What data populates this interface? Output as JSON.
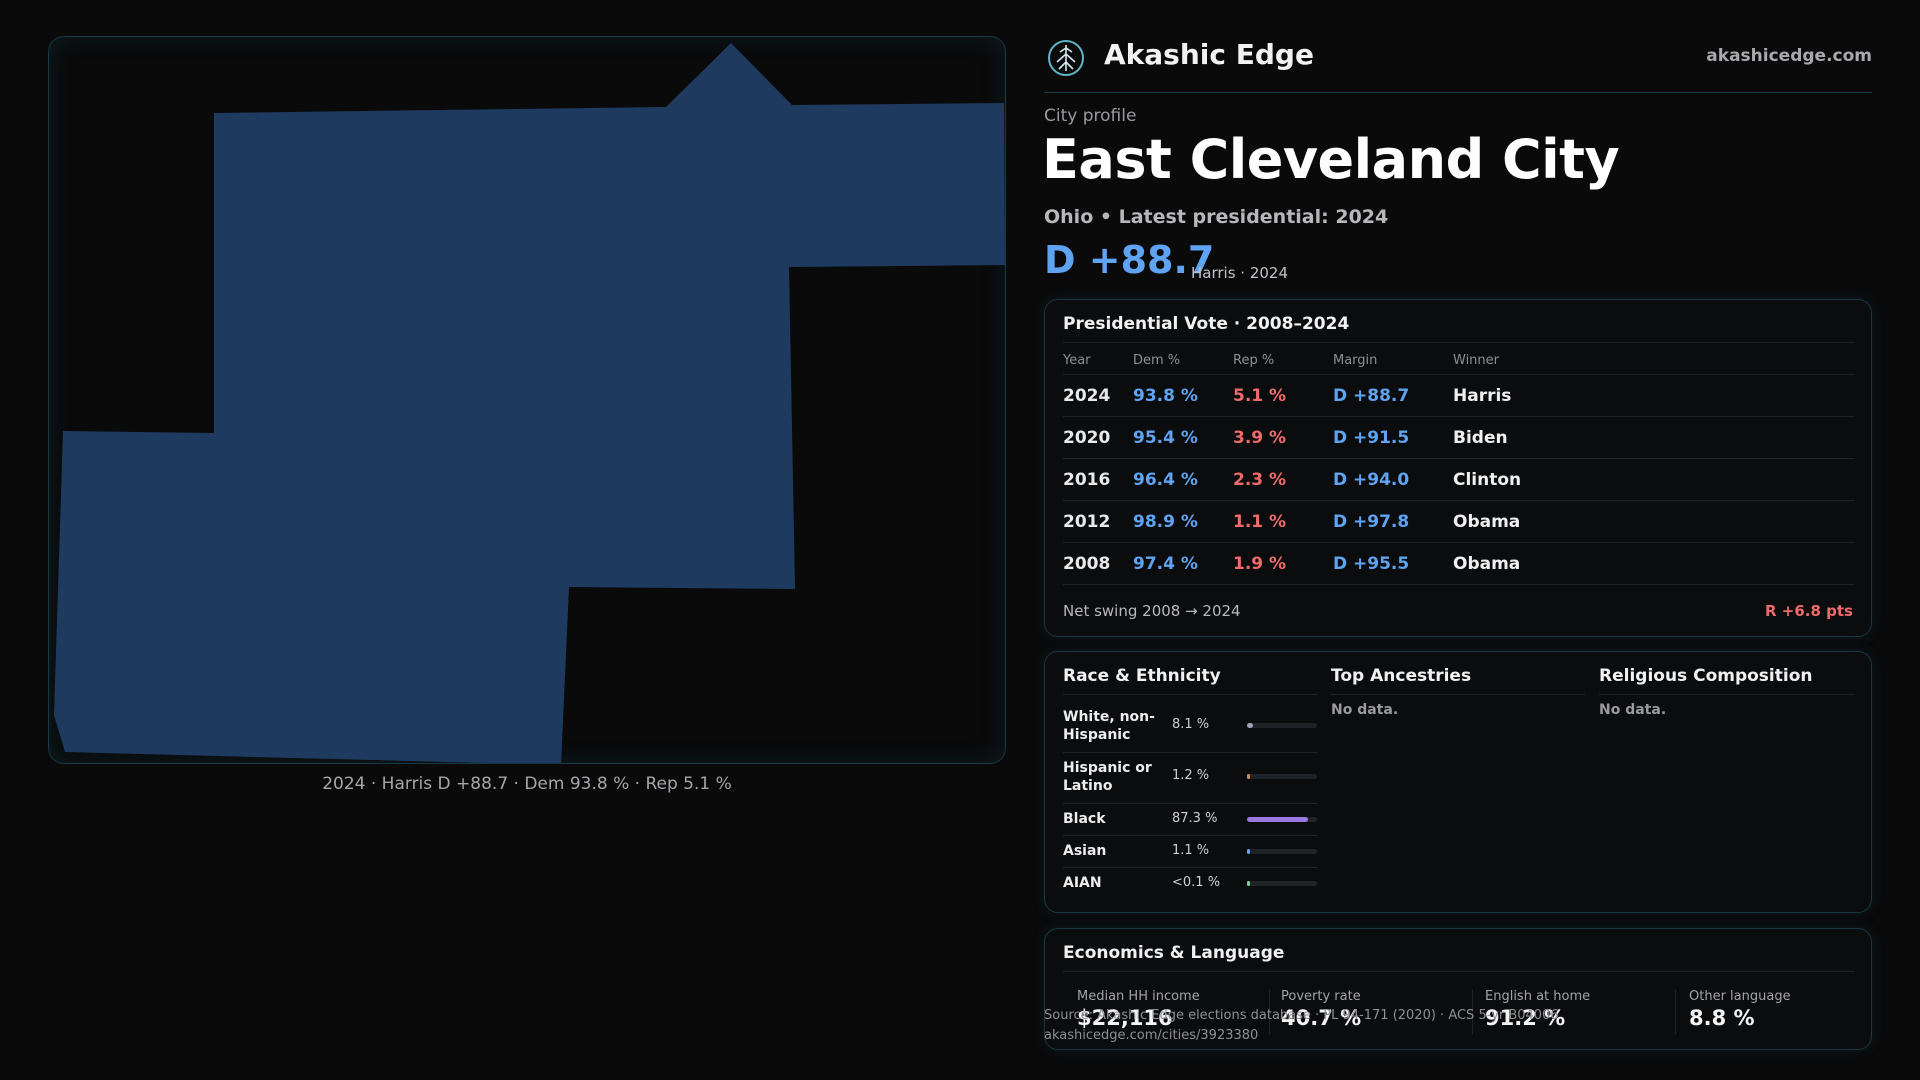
{
  "map": {
    "fill_color": "#1f3a5f",
    "caption": "2024 · Harris D +88.7 · Dem 93.8 % · Rep 5.1 %"
  },
  "header": {
    "brand": "Akashic Edge",
    "site": "akashicedge.com",
    "logo_icon": "tree-of-life-icon"
  },
  "profile": {
    "kicker": "City profile",
    "title": "East Cleveland City",
    "subtitle": "Ohio • Latest presidential: 2024",
    "margin": "D +88.7",
    "margin_note": "Harris · 2024"
  },
  "vote_table": {
    "title": "Presidential Vote · 2008–2024",
    "columns": [
      "Year",
      "Dem %",
      "Rep %",
      "Margin",
      "Winner"
    ],
    "rows": [
      {
        "year": "2024",
        "dem": "93.8 %",
        "rep": "5.1 %",
        "margin": "D +88.7",
        "winner": "Harris"
      },
      {
        "year": "2020",
        "dem": "95.4 %",
        "rep": "3.9 %",
        "margin": "D +91.5",
        "winner": "Biden"
      },
      {
        "year": "2016",
        "dem": "96.4 %",
        "rep": "2.3 %",
        "margin": "D +94.0",
        "winner": "Clinton"
      },
      {
        "year": "2012",
        "dem": "98.9 %",
        "rep": "1.1 %",
        "margin": "D +97.8",
        "winner": "Obama"
      },
      {
        "year": "2008",
        "dem": "97.4 %",
        "rep": "1.9 %",
        "margin": "D +95.5",
        "winner": "Obama"
      }
    ],
    "swing_label": "Net swing 2008 → 2024",
    "swing_value": "R +6.8 pts"
  },
  "race": {
    "title": "Race & Ethnicity",
    "rows": [
      {
        "label": "White, non-Hispanic",
        "value": "8.1 %",
        "share": 8.1,
        "color": "#9aa3b8"
      },
      {
        "label": "Hispanic or Latino",
        "value": "1.2 %",
        "share": 1.2,
        "color": "#d08b5b"
      },
      {
        "label": "Black",
        "value": "87.3 %",
        "share": 87.3,
        "color": "#9b7be0"
      },
      {
        "label": "Asian",
        "value": "1.1 %",
        "share": 1.1,
        "color": "#5fa3f3"
      },
      {
        "label": "AIAN",
        "value": "<0.1 %",
        "share": 0.05,
        "color": "#7fcf9f"
      }
    ]
  },
  "ancestry": {
    "title": "Top Ancestries",
    "empty": "No data."
  },
  "religion": {
    "title": "Religious Composition",
    "empty": "No data."
  },
  "economics": {
    "title": "Economics & Language",
    "items": [
      {
        "label": "Median HH income",
        "value": "$22,116"
      },
      {
        "label": "Poverty rate",
        "value": "40.7 %"
      },
      {
        "label": "English at home",
        "value": "91.2 %"
      },
      {
        "label": "Other language",
        "value": "8.8 %"
      }
    ]
  },
  "source": {
    "line1": "Source: Akashic Edge elections database · PL 94-171 (2020) · ACS 5-yr B04006",
    "line2": "akashicedge.com/cities/3923380"
  }
}
